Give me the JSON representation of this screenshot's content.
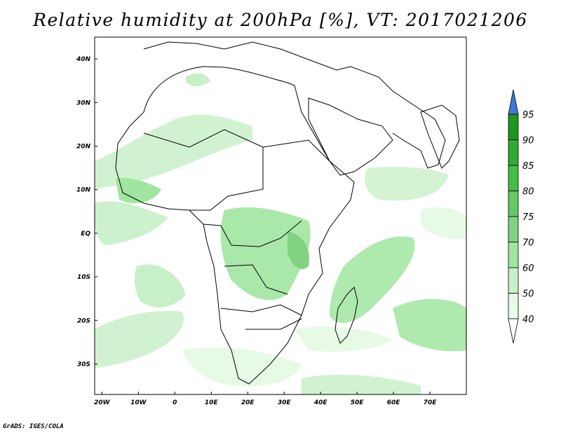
{
  "title": "Relative humidity at 200hPa [%], VT: 2017021206",
  "credit": "GrADS: IGES/COLA",
  "map": {
    "lon_range": [
      -22,
      80
    ],
    "lat_range": [
      -37,
      45
    ],
    "x_ticks": [
      {
        "lon": -20,
        "label": "20W"
      },
      {
        "lon": -10,
        "label": "10W"
      },
      {
        "lon": 0,
        "label": "0"
      },
      {
        "lon": 10,
        "label": "10E"
      },
      {
        "lon": 20,
        "label": "20E"
      },
      {
        "lon": 30,
        "label": "30E"
      },
      {
        "lon": 40,
        "label": "40E"
      },
      {
        "lon": 50,
        "label": "50E"
      },
      {
        "lon": 60,
        "label": "60E"
      },
      {
        "lon": 70,
        "label": "70E"
      }
    ],
    "y_ticks": [
      {
        "lat": 40,
        "label": "40N"
      },
      {
        "lat": 30,
        "label": "30N"
      },
      {
        "lat": 20,
        "label": "20N"
      },
      {
        "lat": 10,
        "label": "10N"
      },
      {
        "lat": 0,
        "label": "EQ"
      },
      {
        "lat": -10,
        "label": "10S"
      },
      {
        "lat": -20,
        "label": "20S"
      },
      {
        "lat": -30,
        "label": "30S"
      }
    ]
  },
  "colorbar": {
    "levels": [
      "40",
      "50",
      "60",
      "70",
      "75",
      "80",
      "85",
      "90",
      "95"
    ],
    "colors": [
      "#e6fae6",
      "#c8f0c8",
      "#a0e6a0",
      "#82d282",
      "#64c864",
      "#46be46",
      "#32aa32",
      "#1e961e"
    ],
    "over_color": "#3c78d8",
    "under_color": "#ffffff"
  }
}
